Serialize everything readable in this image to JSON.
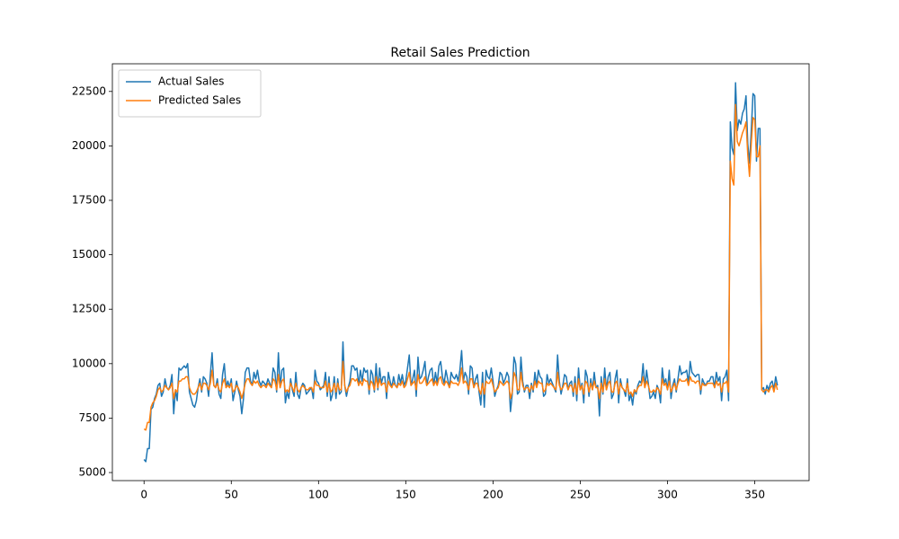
{
  "chart_data": {
    "type": "line",
    "title": "Retail Sales Prediction",
    "x": [
      0,
      1,
      2,
      3,
      4,
      5,
      6,
      7,
      8,
      9,
      10,
      11,
      12,
      13,
      14,
      15,
      16,
      17,
      18,
      19,
      20,
      21,
      22,
      23,
      24,
      25,
      26,
      27,
      28,
      29,
      30,
      31,
      32,
      33,
      34,
      35,
      36,
      37,
      38,
      39,
      40,
      41,
      42,
      43,
      44,
      45,
      46,
      47,
      48,
      49,
      50,
      51,
      52,
      53,
      54,
      55,
      56,
      57,
      58,
      59,
      60,
      61,
      62,
      63,
      64,
      65,
      66,
      67,
      68,
      69,
      70,
      71,
      72,
      73,
      74,
      75,
      76,
      77,
      78,
      79,
      80,
      81,
      82,
      83,
      84,
      85,
      86,
      87,
      88,
      89,
      90,
      91,
      92,
      93,
      94,
      95,
      96,
      97,
      98,
      99,
      100,
      101,
      102,
      103,
      104,
      105,
      106,
      107,
      108,
      109,
      110,
      111,
      112,
      113,
      114,
      115,
      116,
      117,
      118,
      119,
      120,
      121,
      122,
      123,
      124,
      125,
      126,
      127,
      128,
      129,
      130,
      131,
      132,
      133,
      134,
      135,
      136,
      137,
      138,
      139,
      140,
      141,
      142,
      143,
      144,
      145,
      146,
      147,
      148,
      149,
      150,
      151,
      152,
      153,
      154,
      155,
      156,
      157,
      158,
      159,
      160,
      161,
      162,
      163,
      164,
      165,
      166,
      167,
      168,
      169,
      170,
      171,
      172,
      173,
      174,
      175,
      176,
      177,
      178,
      179,
      180,
      181,
      182,
      183,
      184,
      185,
      186,
      187,
      188,
      189,
      190,
      191,
      192,
      193,
      194,
      195,
      196,
      197,
      198,
      199,
      200,
      201,
      202,
      203,
      204,
      205,
      206,
      207,
      208,
      209,
      210,
      211,
      212,
      213,
      214,
      215,
      216,
      217,
      218,
      219,
      220,
      221,
      222,
      223,
      224,
      225,
      226,
      227,
      228,
      229,
      230,
      231,
      232,
      233,
      234,
      235,
      236,
      237,
      238,
      239,
      240,
      241,
      242,
      243,
      244,
      245,
      246,
      247,
      248,
      249,
      250,
      251,
      252,
      253,
      254,
      255,
      256,
      257,
      258,
      259,
      260,
      261,
      262,
      263,
      264,
      265,
      266,
      267,
      268,
      269,
      270,
      271,
      272,
      273,
      274,
      275,
      276,
      277,
      278,
      279,
      280,
      281,
      282,
      283,
      284,
      285,
      286,
      287,
      288,
      289,
      290,
      291,
      292,
      293,
      294,
      295,
      296,
      297,
      298,
      299,
      300,
      301,
      302,
      303,
      304,
      305,
      306,
      307,
      308,
      309,
      310,
      311,
      312,
      313,
      314,
      315,
      316,
      317,
      318,
      319,
      320,
      321,
      322,
      323,
      324,
      325,
      326,
      327,
      328,
      329,
      330,
      331,
      332,
      333,
      334,
      335,
      336,
      337,
      338,
      339,
      340,
      341,
      342,
      343,
      344,
      345,
      346,
      347,
      348,
      349,
      350,
      351,
      352,
      353,
      354,
      355,
      356,
      357,
      358,
      359,
      360,
      361,
      362,
      363
    ],
    "series": [
      {
        "name": "Actual Sales",
        "color": "#1f77b4",
        "values": [
          5600,
          5500,
          6100,
          6100,
          7900,
          8000,
          8400,
          8600,
          9000,
          9100,
          8500,
          8700,
          9300,
          8900,
          8800,
          9000,
          9500,
          7700,
          8800,
          8300,
          9800,
          9700,
          9800,
          9900,
          9800,
          10000,
          8700,
          8400,
          8100,
          8000,
          8300,
          8900,
          9300,
          8700,
          9400,
          9300,
          9100,
          8500,
          9500,
          10500,
          9000,
          8900,
          9300,
          8600,
          8400,
          9500,
          10000,
          8900,
          9200,
          8900,
          9300,
          8300,
          8700,
          9200,
          8800,
          8500,
          7700,
          8400,
          9600,
          9800,
          9800,
          9200,
          9000,
          9600,
          9300,
          9700,
          9200,
          9000,
          9200,
          9100,
          9000,
          9300,
          9100,
          8900,
          9800,
          9600,
          8700,
          10500,
          8900,
          9700,
          9800,
          8200,
          8700,
          8400,
          9300,
          8800,
          8500,
          9600,
          8600,
          8400,
          8900,
          9100,
          9000,
          8600,
          8700,
          8800,
          8900,
          8400,
          9700,
          9200,
          9100,
          8800,
          8900,
          9000,
          9600,
          8500,
          9400,
          8300,
          8600,
          9400,
          8400,
          9300,
          8600,
          8700,
          11000,
          9000,
          8500,
          8900,
          9200,
          9900,
          9900,
          9700,
          9800,
          9000,
          9700,
          9200,
          9800,
          9600,
          9700,
          8600,
          9700,
          9500,
          8700,
          10000,
          8800,
          9800,
          9100,
          9400,
          9400,
          8400,
          9600,
          9200,
          8900,
          9400,
          9000,
          8900,
          9500,
          9100,
          9500,
          9000,
          9200,
          9800,
          10400,
          9000,
          9300,
          9700,
          8500,
          10300,
          9300,
          9400,
          9700,
          10100,
          9000,
          9400,
          9700,
          9800,
          9000,
          9600,
          9100,
          9900,
          10100,
          9400,
          9100,
          9700,
          9300,
          8900,
          9600,
          9400,
          9300,
          9500,
          9200,
          9700,
          10600,
          9200,
          9600,
          9400,
          8600,
          9900,
          9800,
          8900,
          9300,
          9500,
          8700,
          8100,
          9600,
          8000,
          9700,
          9400,
          9300,
          9800,
          9200,
          8500,
          8800,
          9000,
          9600,
          9500,
          9100,
          9300,
          9600,
          9400,
          7800,
          8600,
          10300,
          10000,
          8600,
          8700,
          10300,
          9200,
          8700,
          9000,
          9000,
          8400,
          9100,
          8700,
          9600,
          9000,
          9700,
          9400,
          9300,
          8500,
          8600,
          9500,
          9100,
          9300,
          9100,
          8900,
          8700,
          10400,
          9200,
          8600,
          9000,
          9500,
          9400,
          8800,
          9100,
          9200,
          8500,
          9400,
          8300,
          9800,
          8800,
          9100,
          8200,
          9700,
          9400,
          8500,
          9300,
          8800,
          9600,
          8900,
          9000,
          7600,
          9400,
          8600,
          9800,
          8800,
          9400,
          9600,
          8400,
          8600,
          9300,
          9700,
          8200,
          9300,
          8900,
          8800,
          8500,
          9300,
          8300,
          8600,
          8100,
          8800,
          8600,
          9000,
          9200,
          9100,
          10000,
          8900,
          9700,
          9100,
          8400,
          8500,
          8700,
          8400,
          9000,
          8800,
          8200,
          9800,
          9100,
          9300,
          8800,
          9700,
          8400,
          9000,
          9300,
          8700,
          9300,
          9900,
          9500,
          9600,
          9600,
          9700,
          9100,
          10100,
          9600,
          9500,
          9400,
          9500,
          9500,
          8600,
          9300,
          9100,
          9000,
          9200,
          9200,
          9400,
          9400,
          8900,
          9600,
          9200,
          9400,
          8300,
          9300,
          9400,
          9700,
          8300,
          21100,
          19900,
          19600,
          22900,
          20700,
          21200,
          21000,
          21500,
          21700,
          22300,
          20100,
          19200,
          20700,
          22400,
          22300,
          19300,
          20800,
          20800,
          8800,
          8900,
          8600,
          9000,
          8800,
          9100,
          9200,
          8800,
          9400,
          9000
        ]
      },
      {
        "name": "Predicted Sales",
        "color": "#ff7f0e",
        "values": [
          7000,
          6950,
          7300,
          7300,
          8000,
          8200,
          8300,
          8500,
          8800,
          8900,
          8700,
          8800,
          9000,
          8900,
          8800,
          8900,
          9100,
          8400,
          8800,
          8700,
          9200,
          9200,
          9300,
          9300,
          9400,
          9400,
          8900,
          8700,
          8600,
          8600,
          8700,
          8900,
          9100,
          8800,
          9100,
          9100,
          9000,
          8800,
          9100,
          9700,
          9000,
          8900,
          9100,
          8800,
          8700,
          9100,
          9300,
          8900,
          9000,
          8900,
          9100,
          8700,
          8800,
          9000,
          8900,
          8700,
          8400,
          8700,
          9100,
          9300,
          9300,
          9100,
          9000,
          9200,
          9100,
          9200,
          9000,
          8900,
          9000,
          9000,
          8900,
          9100,
          9000,
          8900,
          9300,
          9200,
          8800,
          9500,
          8900,
          9200,
          9300,
          8700,
          8800,
          8700,
          9100,
          8900,
          8700,
          9100,
          8800,
          8700,
          8900,
          9000,
          8900,
          8800,
          8800,
          8900,
          8900,
          8700,
          9200,
          9000,
          9000,
          8900,
          8900,
          8900,
          9200,
          8700,
          9100,
          8700,
          8800,
          9100,
          8700,
          9100,
          8800,
          8800,
          10100,
          9000,
          8700,
          8900,
          9000,
          9300,
          9300,
          9200,
          9300,
          9000,
          9200,
          9000,
          9300,
          9200,
          9200,
          8800,
          9200,
          9100,
          8800,
          9400,
          8900,
          9300,
          9000,
          9100,
          9100,
          8700,
          9200,
          9000,
          8900,
          9100,
          9000,
          8900,
          9100,
          9000,
          9200,
          8900,
          9000,
          9300,
          9600,
          9000,
          9100,
          9200,
          8800,
          9500,
          9100,
          9100,
          9200,
          9400,
          9000,
          9100,
          9200,
          9300,
          9000,
          9200,
          9000,
          9300,
          9400,
          9100,
          9000,
          9200,
          9100,
          8900,
          9200,
          9100,
          9100,
          9100,
          9000,
          9200,
          9800,
          9100,
          9200,
          9100,
          8800,
          9300,
          9300,
          8900,
          9100,
          9100,
          8800,
          8600,
          9100,
          8600,
          9200,
          9100,
          9100,
          9300,
          9000,
          8700,
          8800,
          8900,
          9200,
          9100,
          9000,
          9100,
          9200,
          9100,
          8400,
          8700,
          9600,
          9400,
          8800,
          8800,
          9600,
          9000,
          8800,
          8900,
          8900,
          8700,
          9000,
          8800,
          9200,
          8900,
          9200,
          9100,
          9100,
          8700,
          8800,
          9100,
          9000,
          9100,
          9000,
          8900,
          8800,
          9600,
          9000,
          8800,
          8900,
          9100,
          9100,
          8800,
          9000,
          9000,
          8700,
          9100,
          8600,
          9300,
          8800,
          9000,
          8600,
          9200,
          9100,
          8700,
          9100,
          8800,
          9200,
          8900,
          8900,
          8400,
          9100,
          8700,
          9300,
          8800,
          9100,
          9200,
          8700,
          8700,
          9100,
          9200,
          8600,
          9100,
          8900,
          8800,
          8700,
          9100,
          8600,
          8700,
          8500,
          8800,
          8700,
          8900,
          9000,
          9000,
          9400,
          8900,
          9200,
          9000,
          8700,
          8700,
          8800,
          8700,
          8900,
          8800,
          8600,
          9300,
          9000,
          9100,
          8800,
          9200,
          8700,
          8900,
          9100,
          8800,
          9100,
          9300,
          9200,
          9200,
          9200,
          9300,
          9000,
          9400,
          9200,
          9200,
          9100,
          9200,
          9200,
          8800,
          9100,
          9000,
          9000,
          9100,
          9100,
          9100,
          9100,
          8900,
          9200,
          9000,
          9100,
          8700,
          9100,
          9100,
          9200,
          8700,
          19300,
          18500,
          18200,
          21900,
          20200,
          20000,
          20300,
          20600,
          20800,
          21100,
          19600,
          18600,
          20100,
          21300,
          21200,
          19500,
          19500,
          20000,
          8800,
          8700,
          8800,
          8800,
          8700,
          8900,
          9000,
          8700,
          9100,
          8800
        ]
      }
    ],
    "xlim": [
      -18.15,
      381.15
    ],
    "xticks": [
      0,
      50,
      100,
      150,
      200,
      250,
      300,
      350
    ],
    "ylim": [
      4630,
      23770
    ],
    "yticks": [
      5000,
      7500,
      10000,
      12500,
      15000,
      17500,
      20000,
      22500
    ],
    "legend": "upper left"
  }
}
